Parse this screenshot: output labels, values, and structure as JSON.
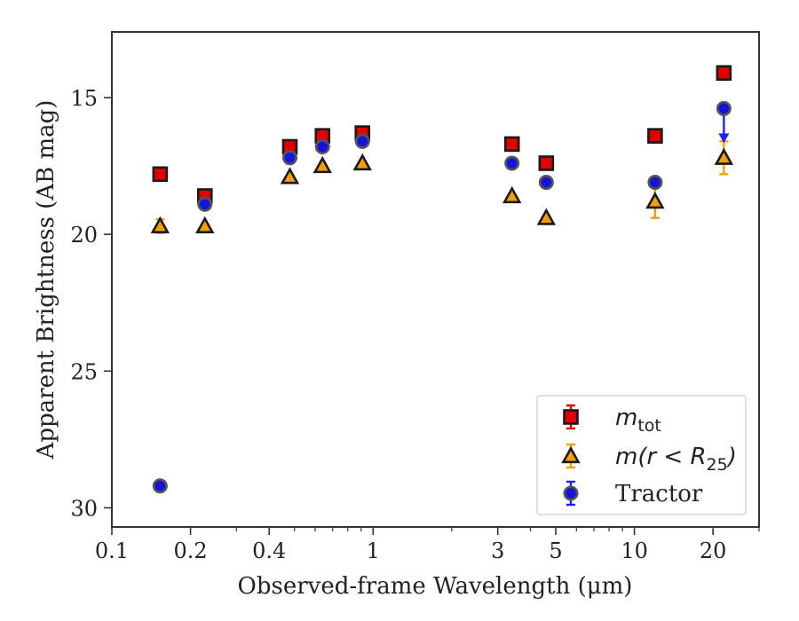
{
  "chart_data": {
    "type": "scatter",
    "xlabel": "Observed-frame Wavelength (μm)",
    "ylabel": "Apparent Brightness (AB mag)",
    "xscale": "log",
    "xlim": [
      0.1,
      30
    ],
    "ylim": [
      30.7,
      12.6
    ],
    "y_inverted": true,
    "grid": false,
    "legend_position": "lower-right",
    "x_ticks": [
      {
        "value": 0.1,
        "label": "0.1"
      },
      {
        "value": 0.2,
        "label": "0.2"
      },
      {
        "value": 0.4,
        "label": "0.4"
      },
      {
        "value": 1,
        "label": "1"
      },
      {
        "value": 3,
        "label": "3"
      },
      {
        "value": 5,
        "label": "5"
      },
      {
        "value": 10,
        "label": "10"
      },
      {
        "value": 20,
        "label": "20"
      }
    ],
    "x_minor_ticks": [
      0.3,
      0.5,
      0.6,
      0.7,
      0.8,
      0.9,
      2,
      4,
      6,
      7,
      8,
      9,
      30
    ],
    "y_ticks": [
      {
        "value": 15,
        "label": "15"
      },
      {
        "value": 20,
        "label": "20"
      },
      {
        "value": 25,
        "label": "25"
      },
      {
        "value": 30,
        "label": "30"
      }
    ],
    "series": [
      {
        "name": "m_tot",
        "legend": {
          "base": "m",
          "sub": "tot"
        },
        "marker": "square",
        "color": "#e00000",
        "errcolor": "#e00000",
        "points": [
          {
            "x": 0.153,
            "y": 17.8
          },
          {
            "x": 0.227,
            "y": 18.6
          },
          {
            "x": 0.48,
            "y": 16.8
          },
          {
            "x": 0.64,
            "y": 16.4
          },
          {
            "x": 0.91,
            "y": 16.3
          },
          {
            "x": 3.4,
            "y": 16.7
          },
          {
            "x": 4.6,
            "y": 17.4
          },
          {
            "x": 12.0,
            "y": 16.4
          },
          {
            "x": 22.0,
            "y": 14.1
          }
        ]
      },
      {
        "name": "m(r < R25)",
        "legend": {
          "base": "m(r < R",
          "sub": "25",
          "close": ")"
        },
        "marker": "triangle",
        "color": "#f5a000",
        "errcolor": "#f5a000",
        "points": [
          {
            "x": 0.153,
            "y": 19.7,
            "err": 0.25
          },
          {
            "x": 0.227,
            "y": 19.7
          },
          {
            "x": 0.48,
            "y": 17.9
          },
          {
            "x": 0.64,
            "y": 17.5
          },
          {
            "x": 0.91,
            "y": 17.4
          },
          {
            "x": 3.4,
            "y": 18.6
          },
          {
            "x": 4.6,
            "y": 19.4
          },
          {
            "x": 12.0,
            "y": 18.8,
            "err": 0.6
          },
          {
            "x": 22.0,
            "y": 17.2,
            "err": 0.6
          }
        ]
      },
      {
        "name": "Tractor",
        "legend": {
          "base": "Tractor"
        },
        "marker": "circle",
        "color": "#1515d8",
        "errcolor": "#2020ff",
        "points": [
          {
            "x": 0.153,
            "y": 29.2
          },
          {
            "x": 0.227,
            "y": 18.9
          },
          {
            "x": 0.48,
            "y": 17.2
          },
          {
            "x": 0.64,
            "y": 16.8
          },
          {
            "x": 0.91,
            "y": 16.6
          },
          {
            "x": 3.4,
            "y": 17.4
          },
          {
            "x": 4.6,
            "y": 18.1
          },
          {
            "x": 12.0,
            "y": 18.1
          },
          {
            "x": 22.0,
            "y": 15.4,
            "upper_limit": true,
            "arrow_to": 16.6
          }
        ]
      }
    ]
  }
}
